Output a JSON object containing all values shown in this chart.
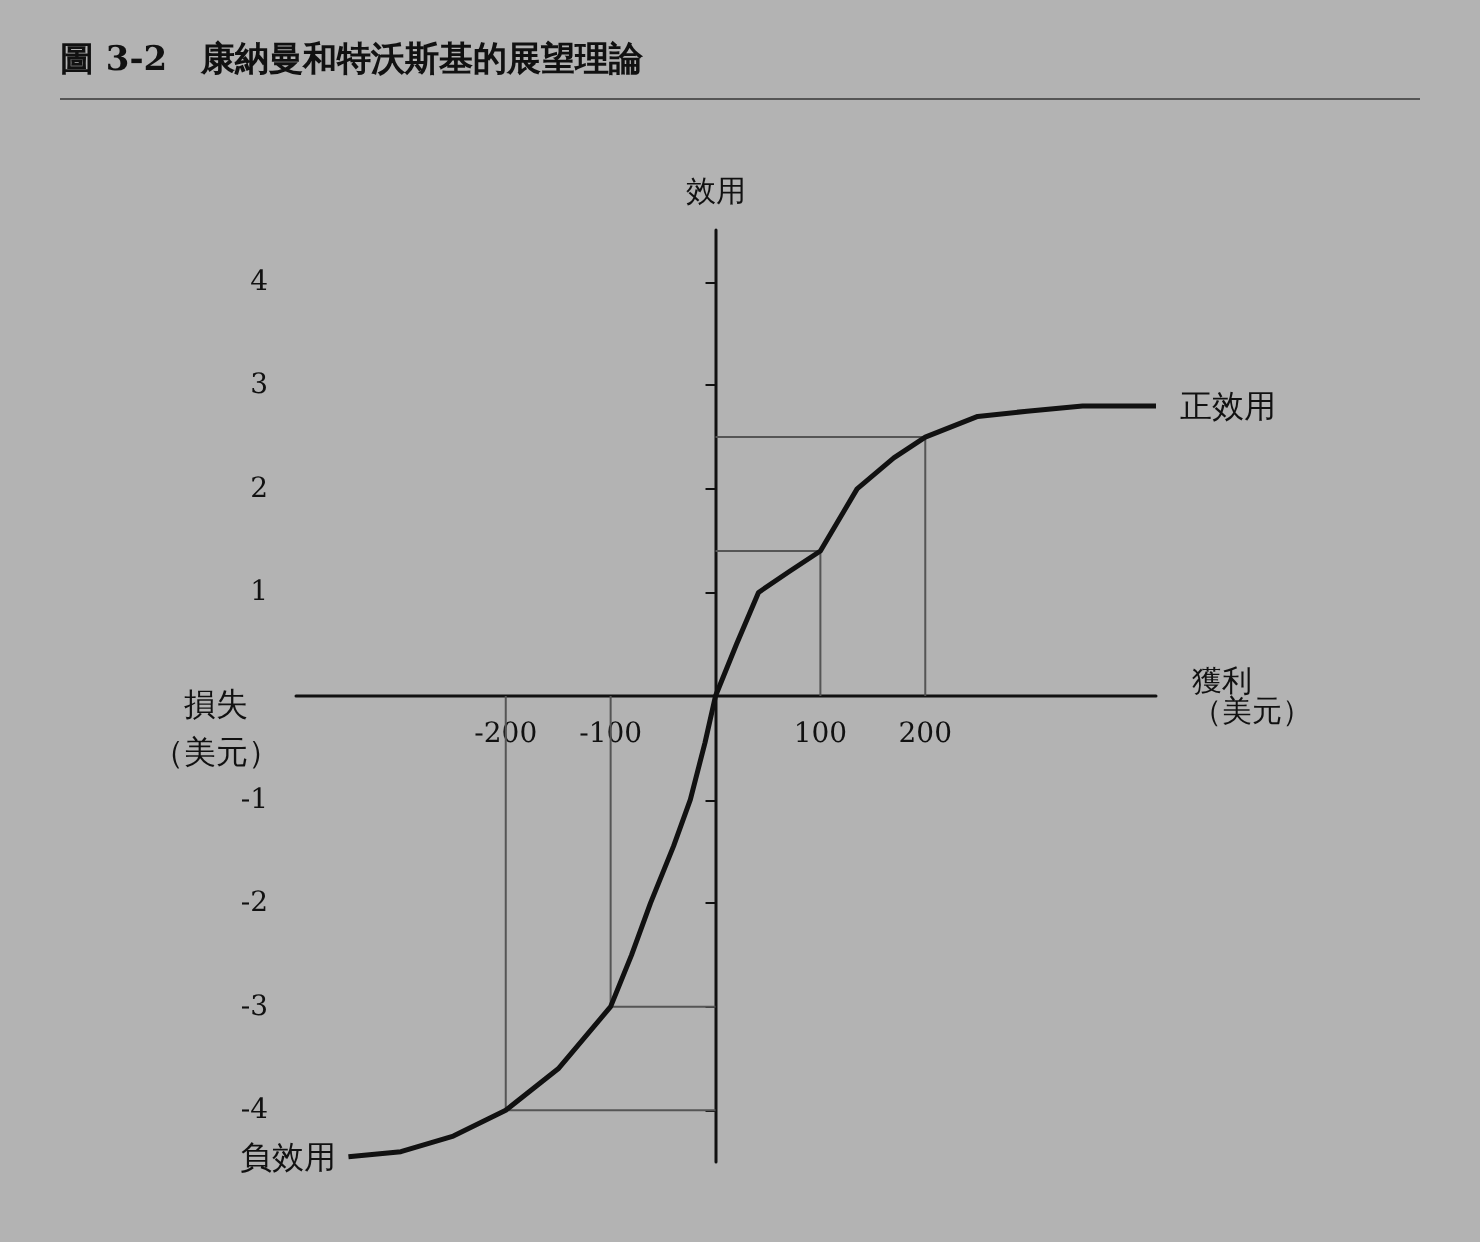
{
  "chart_data": {
    "type": "line",
    "title": "圖 3-2　康納曼和特沃斯基的展望理論",
    "xlabel": "獲利（美元）",
    "ylabel": "效用",
    "annotations": [
      {
        "text": "正效用",
        "x": 420,
        "y": 2.8
      },
      {
        "text": "負效用",
        "x": -350,
        "y": -4.45
      },
      "損失（美元）"
    ],
    "xlim": [
      -400,
      420
    ],
    "xticks": [
      -200,
      -100,
      100,
      200
    ],
    "ylim": [
      -4.5,
      4.5
    ],
    "yticks": [
      -4,
      -3,
      -2,
      -1,
      1,
      2,
      3,
      4
    ],
    "grid": false,
    "marker": "none",
    "line_style": "solid",
    "series": [
      {
        "color": "#111111",
        "x": [
          -350,
          -300,
          -250,
          -200,
          -150,
          -100,
          -80,
          -62,
          -40,
          -24,
          -10,
          0,
          20,
          41,
          70,
          100,
          135,
          170,
          200,
          250,
          297,
          350,
          420
        ],
        "values": [
          -4.45,
          -4.4,
          -4.25,
          -4.0,
          -3.6,
          -3.0,
          -2.5,
          -2.0,
          -1.45,
          -1.0,
          -0.45,
          0,
          0.5,
          1.0,
          1.2,
          1.4,
          2.0,
          2.3,
          2.5,
          2.7,
          2.75,
          2.8,
          2.8
        ]
      },
      {
        "color": "#555555",
        "x": [
          0,
          100,
          100
        ],
        "values": [
          1.4,
          1.4,
          0
        ]
      },
      {
        "color": "#555555",
        "x": [
          0,
          200,
          200
        ],
        "values": [
          2.5,
          2.5,
          0
        ]
      },
      {
        "color": "#555555",
        "x": [
          0,
          -100,
          -100
        ],
        "values": [
          -3,
          -3,
          0
        ]
      },
      {
        "color": "#555555",
        "x": [
          0,
          -200,
          -200
        ],
        "values": [
          -4,
          -4,
          0
        ]
      }
    ]
  }
}
